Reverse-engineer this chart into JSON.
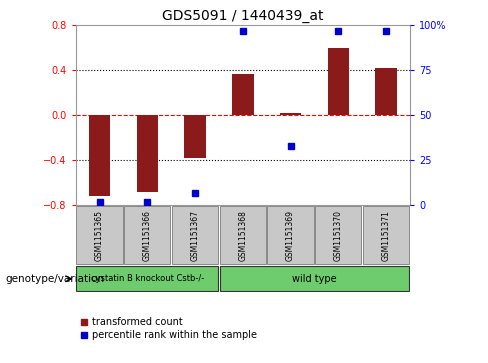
{
  "title": "GDS5091 / 1440439_at",
  "samples": [
    "GSM1151365",
    "GSM1151366",
    "GSM1151367",
    "GSM1151368",
    "GSM1151369",
    "GSM1151370",
    "GSM1151371"
  ],
  "red_values": [
    -0.72,
    -0.68,
    -0.38,
    0.37,
    0.02,
    0.6,
    0.42
  ],
  "blue_fractions": [
    0.02,
    0.02,
    0.07,
    0.97,
    0.33,
    0.97,
    0.97
  ],
  "ylim": [
    -0.8,
    0.8
  ],
  "right_ylim": [
    0,
    100
  ],
  "right_yticks": [
    0,
    25,
    50,
    75,
    100
  ],
  "right_yticklabels": [
    "0",
    "25",
    "50",
    "75",
    "100%"
  ],
  "left_yticks": [
    -0.8,
    -0.4,
    0.0,
    0.4,
    0.8
  ],
  "hline_dashed_red": 0.0,
  "hline_dotted_black": [
    0.4,
    -0.4
  ],
  "bar_color": "#8B1A1A",
  "blue_marker_color": "#0000CC",
  "bar_width": 0.45,
  "group1_label": "cystatin B knockout Cstb-/-",
  "group2_label": "wild type",
  "group1_indices": [
    0,
    1,
    2
  ],
  "group2_indices": [
    3,
    4,
    5,
    6
  ],
  "group_color": "#6ECC6E",
  "legend_red_label": "transformed count",
  "legend_blue_label": "percentile rank within the sample",
  "genotype_label": "genotype/variation",
  "background_color": "#ffffff",
  "label_area_color": "#c8c8c8",
  "label_area_border": "#888888",
  "title_fontsize": 10,
  "tick_fontsize": 7,
  "sample_fontsize": 5.5,
  "group_fontsize": 7,
  "legend_fontsize": 7,
  "genotype_fontsize": 7.5
}
